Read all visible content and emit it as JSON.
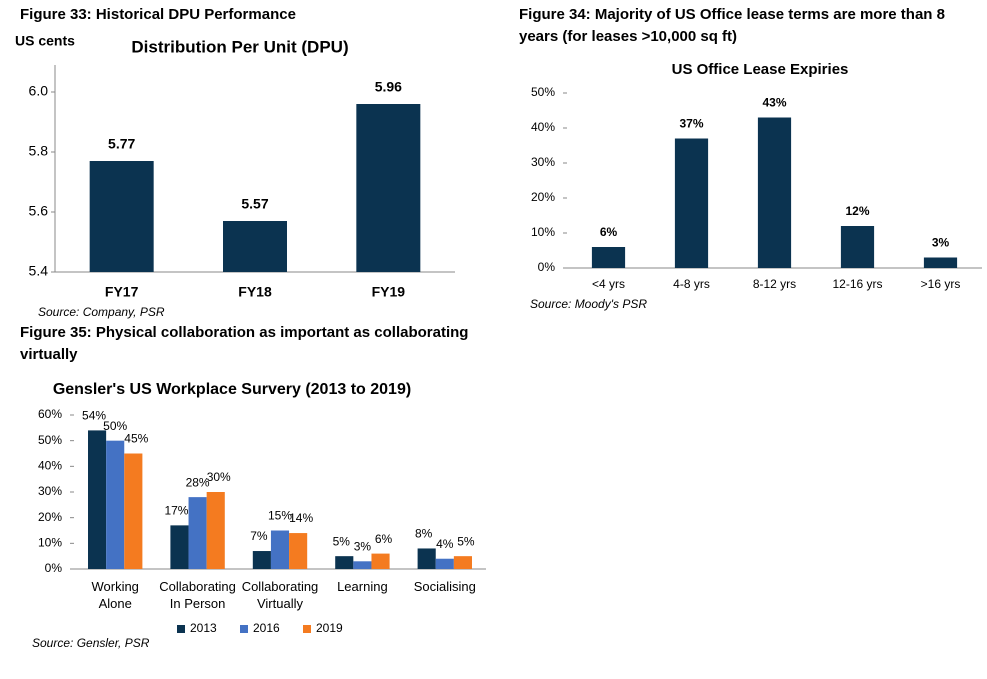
{
  "chart_data": [
    {
      "type": "bar",
      "figure_title": "Figure 33: Historical DPU Performance",
      "title": "Distribution Per Unit (DPU)",
      "ylabel": "US cents",
      "categories": [
        "FY17",
        "FY18",
        "FY19"
      ],
      "values": [
        5.77,
        5.57,
        5.96
      ],
      "color": "#0b3350",
      "ylim": [
        5.4,
        6.09
      ],
      "yticks": [
        5.4,
        5.6,
        5.8,
        {
          "value": 6,
          "label": "6.0"
        }
      ],
      "source": "Source: Company, PSR"
    },
    {
      "type": "bar",
      "figure_title": "Figure 34: Majority of US Office lease terms are more than 8 years (for leases >10,000 sq ft)",
      "title": "US Office Lease Expiries",
      "categories": [
        "<4 yrs",
        "4-8 yrs",
        "8-12 yrs",
        "12-16 yrs",
        ">16 yrs"
      ],
      "values": [
        6,
        37,
        43,
        12,
        3
      ],
      "value_labels": [
        "6%",
        "37%",
        "43%",
        "12%",
        "3%"
      ],
      "color": "#0b3350",
      "ylim": [
        0,
        50
      ],
      "yticks": [
        {
          "value": 0,
          "label": "0%"
        },
        {
          "value": 10,
          "label": "10%"
        },
        {
          "value": 20,
          "label": "20%"
        },
        {
          "value": 30,
          "label": "30%"
        },
        {
          "value": 40,
          "label": "40%"
        },
        {
          "value": 50,
          "label": "50%"
        }
      ],
      "source": "Source: Moody's PSR"
    },
    {
      "type": "bar",
      "figure_title": "Figure 35: Physical collaboration as important as collaborating virtually",
      "title": "Gensler's US Workplace Survery (2013 to 2019)",
      "categories": [
        "Working Alone",
        "Collaborating In Person",
        "Collaborating Virtually",
        "Learning",
        "Socialising"
      ],
      "series": [
        {
          "name": "2013",
          "color": "#0b3350",
          "values": [
            54,
            17,
            7,
            5,
            8
          ],
          "value_labels": [
            "54%",
            "17%",
            "7%",
            "5%",
            "8%"
          ]
        },
        {
          "name": "2016",
          "color": "#4472c4",
          "values": [
            50,
            28,
            15,
            3,
            4
          ],
          "value_labels": [
            "50%",
            "28%",
            "15%",
            "3%",
            "4%"
          ]
        },
        {
          "name": "2019",
          "color": "#f47b20",
          "values": [
            45,
            30,
            14,
            6,
            5
          ],
          "value_labels": [
            "45%",
            "30%",
            "14%",
            "6%",
            "5%"
          ]
        }
      ],
      "ylim": [
        0,
        60
      ],
      "yticks": [
        {
          "value": 0,
          "label": "0%"
        },
        {
          "value": 10,
          "label": "10%"
        },
        {
          "value": 20,
          "label": "20%"
        },
        {
          "value": 30,
          "label": "30%"
        },
        {
          "value": 40,
          "label": "40%"
        },
        {
          "value": 50,
          "label": "50%"
        },
        {
          "value": 60,
          "label": "60%"
        }
      ],
      "legend": "bottom",
      "source": "Source: Gensler, PSR"
    }
  ]
}
